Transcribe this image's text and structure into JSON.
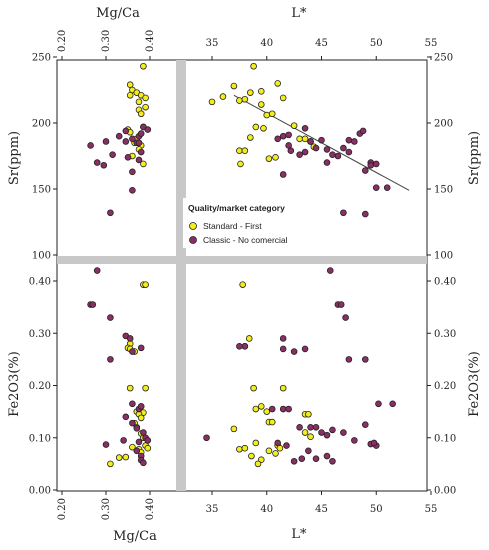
{
  "legend": {
    "title": "Quality/market category",
    "items": [
      {
        "label": "Standard - First",
        "color": "#f3ee1a"
      },
      {
        "label": "Classic - No comercial",
        "color": "#8a2f63"
      }
    ]
  },
  "chart_data": {
    "type": "scatter",
    "panels": [
      {
        "id": "top-left",
        "x": "Mg/Ca",
        "y": "Sr",
        "xlabel": "Mg/Ca",
        "ylabel": "Sr(ppm)",
        "xlim": [
          0.2,
          0.45
        ],
        "ylim": [
          100,
          250
        ],
        "xticks": [
          "0.20",
          "0.30",
          "0.40"
        ],
        "yticks": [
          "100",
          "150",
          "200",
          "250"
        ],
        "series": [
          {
            "name": "Standard - First",
            "points": [
              [
                0.385,
                243
              ],
              [
                0.355,
                229
              ],
              [
                0.36,
                225
              ],
              [
                0.355,
                221
              ],
              [
                0.37,
                223
              ],
              [
                0.38,
                221
              ],
              [
                0.39,
                219
              ],
              [
                0.375,
                216
              ],
              [
                0.39,
                212
              ],
              [
                0.375,
                210
              ],
              [
                0.38,
                207
              ],
              [
                0.385,
                197
              ],
              [
                0.35,
                195
              ],
              [
                0.355,
                193
              ],
              [
                0.37,
                188
              ],
              [
                0.365,
                185
              ],
              [
                0.38,
                183
              ],
              [
                0.375,
                180
              ],
              [
                0.36,
                175
              ],
              [
                0.385,
                169
              ]
            ]
          },
          {
            "name": "Classic - No comercial",
            "points": [
              [
                0.31,
                132
              ],
              [
                0.36,
                149
              ],
              [
                0.295,
                168
              ],
              [
                0.28,
                170
              ],
              [
                0.265,
                183
              ],
              [
                0.3,
                186
              ],
              [
                0.345,
                186
              ],
              [
                0.35,
                174
              ],
              [
                0.315,
                176
              ],
              [
                0.33,
                190
              ],
              [
                0.345,
                194
              ],
              [
                0.36,
                188
              ],
              [
                0.37,
                185
              ],
              [
                0.375,
                190
              ],
              [
                0.38,
                192
              ],
              [
                0.385,
                197
              ],
              [
                0.395,
                195
              ],
              [
                0.38,
                178
              ],
              [
                0.375,
                172
              ],
              [
                0.36,
                163
              ],
              [
                0.375,
                185
              ]
            ]
          }
        ]
      },
      {
        "id": "top-right",
        "x": "L*",
        "y": "Sr",
        "xlabel": "L*",
        "ylabel": "Sr(ppm)",
        "xlim": [
          35,
          55
        ],
        "ylim": [
          100,
          250
        ],
        "xticks": [
          "35",
          "40",
          "45",
          "50",
          "55"
        ],
        "yticks": [
          "100",
          "150",
          "200",
          "250"
        ],
        "trendline": [
          [
            37,
            221
          ],
          [
            53,
            149
          ]
        ],
        "series": [
          {
            "name": "Standard - First",
            "points": [
              [
                35,
                216
              ],
              [
                36,
                220
              ],
              [
                37,
                228
              ],
              [
                37.5,
                217
              ],
              [
                38,
                218
              ],
              [
                38.5,
                223
              ],
              [
                38.8,
                243
              ],
              [
                39.5,
                214
              ],
              [
                40,
                206
              ],
              [
                40.5,
                207
              ],
              [
                41,
                230
              ],
              [
                37.5,
                179
              ],
              [
                38,
                179
              ],
              [
                39,
                197
              ],
              [
                39.7,
                196
              ],
              [
                40.2,
                173
              ],
              [
                40.8,
                174
              ],
              [
                37.6,
                169
              ],
              [
                38.5,
                189
              ],
              [
                39.5,
                224
              ],
              [
                41.5,
                219
              ],
              [
                42.5,
                198
              ],
              [
                43,
                188
              ],
              [
                43.5,
                188
              ],
              [
                44,
                186
              ],
              [
                44.3,
                182
              ]
            ]
          },
          {
            "name": "Classic - No comercial",
            "points": [
              [
                41.5,
                190
              ],
              [
                41,
                188
              ],
              [
                42,
                183
              ],
              [
                42.2,
                179
              ],
              [
                43,
                176
              ],
              [
                43.5,
                178
              ],
              [
                44,
                186
              ],
              [
                45.5,
                180
              ],
              [
                45,
                187
              ],
              [
                45.5,
                170
              ],
              [
                46,
                176
              ],
              [
                47,
                181
              ],
              [
                47.5,
                187
              ],
              [
                48,
                186
              ],
              [
                48.5,
                192
              ],
              [
                48.8,
                194
              ],
              [
                49.5,
                170
              ],
              [
                50,
                169
              ],
              [
                49.5,
                168
              ],
              [
                49,
                164
              ],
              [
                50,
                151
              ],
              [
                51,
                151
              ],
              [
                47,
                132
              ],
              [
                49,
                131
              ],
              [
                41.5,
                161
              ],
              [
                42,
                191
              ],
              [
                43.5,
                196
              ],
              [
                44.5,
                181
              ],
              [
                46.5,
                175
              ],
              [
                47.5,
                178
              ]
            ]
          }
        ]
      },
      {
        "id": "bottom-left",
        "x": "Mg/Ca",
        "y": "Fe2O3",
        "xlabel": "Mg/Ca",
        "ylabel": "Fe2O3(%)",
        "xlim": [
          0.2,
          0.45
        ],
        "ylim": [
          0,
          0.43
        ],
        "xticks": [
          "0.20",
          "0.30",
          "0.40"
        ],
        "yticks": [
          "0.00",
          "0.10",
          "0.20",
          "0.30",
          "0.40"
        ],
        "series": [
          {
            "name": "Standard - First",
            "points": [
              [
                0.385,
                0.393
              ],
              [
                0.39,
                0.393
              ],
              [
                0.355,
                0.28
              ],
              [
                0.35,
                0.272
              ],
              [
                0.355,
                0.27
              ],
              [
                0.365,
                0.265
              ],
              [
                0.355,
                0.195
              ],
              [
                0.39,
                0.195
              ],
              [
                0.38,
                0.16
              ],
              [
                0.37,
                0.15
              ],
              [
                0.385,
                0.148
              ],
              [
                0.375,
                0.145
              ],
              [
                0.38,
                0.138
              ],
              [
                0.365,
                0.128
              ],
              [
                0.37,
                0.12
              ],
              [
                0.38,
                0.108
              ],
              [
                0.385,
                0.1
              ],
              [
                0.39,
                0.085
              ],
              [
                0.375,
                0.078
              ],
              [
                0.36,
                0.082
              ],
              [
                0.395,
                0.08
              ],
              [
                0.31,
                0.05
              ],
              [
                0.33,
                0.062
              ],
              [
                0.345,
                0.063
              ],
              [
                0.38,
                0.072
              ]
            ]
          },
          {
            "name": "Classic - No comercial",
            "points": [
              [
                0.28,
                0.42
              ],
              [
                0.265,
                0.355
              ],
              [
                0.27,
                0.355
              ],
              [
                0.31,
                0.33
              ],
              [
                0.345,
                0.295
              ],
              [
                0.355,
                0.29
              ],
              [
                0.38,
                0.272
              ],
              [
                0.31,
                0.25
              ],
              [
                0.36,
                0.265
              ],
              [
                0.36,
                0.165
              ],
              [
                0.375,
                0.155
              ],
              [
                0.38,
                0.16
              ],
              [
                0.345,
                0.14
              ],
              [
                0.36,
                0.128
              ],
              [
                0.37,
                0.118
              ],
              [
                0.385,
                0.11
              ],
              [
                0.39,
                0.1
              ],
              [
                0.395,
                0.095
              ],
              [
                0.375,
                0.092
              ],
              [
                0.3,
                0.087
              ],
              [
                0.34,
                0.095
              ],
              [
                0.37,
                0.075
              ],
              [
                0.38,
                0.065
              ],
              [
                0.38,
                0.057
              ],
              [
                0.385,
                0.052
              ]
            ]
          }
        ]
      },
      {
        "id": "bottom-right",
        "x": "L*",
        "y": "Fe2O3",
        "xlabel": "L*",
        "ylabel": "Fe2O3(%)",
        "xlim": [
          35,
          55
        ],
        "ylim": [
          0,
          0.43
        ],
        "xticks": [
          "35",
          "40",
          "45",
          "50",
          "55"
        ],
        "yticks": [
          "0.00",
          "0.10",
          "0.20",
          "0.30",
          "0.40"
        ],
        "series": [
          {
            "name": "Standard - First",
            "points": [
              [
                37.8,
                0.393
              ],
              [
                38,
                0.275
              ],
              [
                38.4,
                0.29
              ],
              [
                38.8,
                0.195
              ],
              [
                39,
                0.155
              ],
              [
                39.5,
                0.16
              ],
              [
                40,
                0.15
              ],
              [
                40.2,
                0.13
              ],
              [
                40.5,
                0.13
              ],
              [
                37.5,
                0.078
              ],
              [
                38,
                0.08
              ],
              [
                39,
                0.09
              ],
              [
                39.5,
                0.058
              ],
              [
                40.2,
                0.075
              ],
              [
                41,
                0.085
              ],
              [
                41.5,
                0.195
              ],
              [
                43.5,
                0.145
              ],
              [
                43.8,
                0.145
              ],
              [
                43.5,
                0.11
              ],
              [
                44,
                0.102
              ],
              [
                37,
                0.117
              ],
              [
                38.6,
                0.065
              ],
              [
                40.8,
                0.07
              ],
              [
                41.2,
                0.08
              ],
              [
                39.2,
                0.05
              ]
            ]
          },
          {
            "name": "Classic - No comercial",
            "points": [
              [
                45.8,
                0.42
              ],
              [
                46.5,
                0.355
              ],
              [
                46.8,
                0.355
              ],
              [
                47.2,
                0.33
              ],
              [
                38,
                0.275
              ],
              [
                37.5,
                0.275
              ],
              [
                41.5,
                0.29
              ],
              [
                41.5,
                0.27
              ],
              [
                42.5,
                0.265
              ],
              [
                43.5,
                0.27
              ],
              [
                47.5,
                0.25
              ],
              [
                49,
                0.25
              ],
              [
                41.5,
                0.155
              ],
              [
                42,
                0.155
              ],
              [
                43,
                0.12
              ],
              [
                44,
                0.12
              ],
              [
                44.5,
                0.12
              ],
              [
                45,
                0.11
              ],
              [
                45.5,
                0.105
              ],
              [
                46,
                0.115
              ],
              [
                47,
                0.11
              ],
              [
                48,
                0.095
              ],
              [
                49.5,
                0.088
              ],
              [
                50,
                0.085
              ],
              [
                49.8,
                0.09
              ],
              [
                50.2,
                0.165
              ],
              [
                51.5,
                0.165
              ],
              [
                49,
                0.125
              ],
              [
                34.5,
                0.1
              ],
              [
                43.2,
                0.06
              ],
              [
                43.8,
                0.075
              ],
              [
                44.5,
                0.06
              ],
              [
                45.5,
                0.065
              ],
              [
                46,
                0.055
              ],
              [
                42.5,
                0.055
              ],
              [
                41,
                0.09
              ],
              [
                40.5,
                0.155
              ],
              [
                41.8,
                0.085
              ]
            ]
          }
        ]
      }
    ]
  }
}
